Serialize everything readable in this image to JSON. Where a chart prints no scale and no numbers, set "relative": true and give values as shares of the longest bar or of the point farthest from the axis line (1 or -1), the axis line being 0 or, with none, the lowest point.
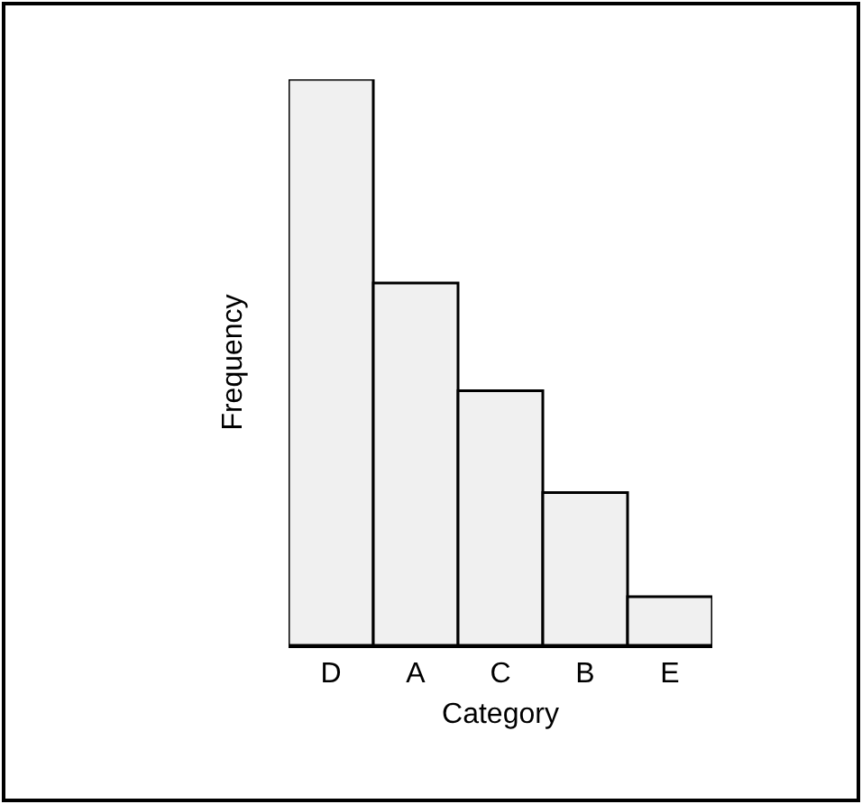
{
  "chart_data": {
    "type": "bar",
    "xlabel": "Category",
    "ylabel": "Frequency",
    "categories": [
      "D",
      "A",
      "C",
      "B",
      "E"
    ],
    "values": [
      1,
      0.64,
      0.45,
      0.27,
      0.086
    ],
    "color": "#f0f0f0",
    "relative": true,
    "grid": false
  }
}
